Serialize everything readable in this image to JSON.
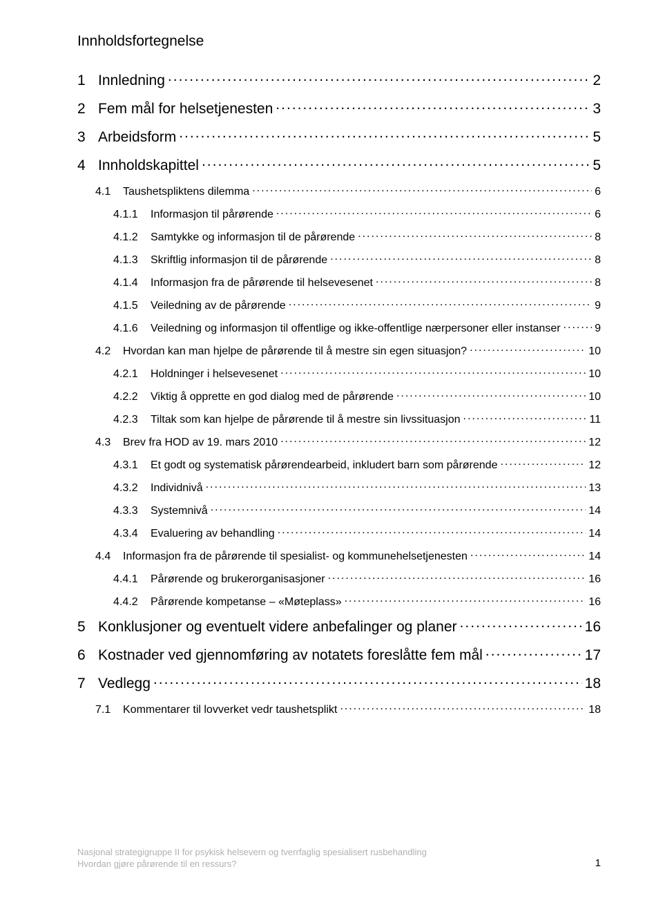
{
  "heading": "Innholdsfortegnelse",
  "toc": [
    {
      "level": 1,
      "num": "1",
      "title": "Innledning",
      "page": "2"
    },
    {
      "level": 1,
      "num": "2",
      "title": "Fem mål for helsetjenesten",
      "page": "3"
    },
    {
      "level": 1,
      "num": "3",
      "title": "Arbeidsform",
      "page": "5"
    },
    {
      "level": 1,
      "num": "4",
      "title": "Innholdskapittel",
      "page": "5"
    },
    {
      "level": 2,
      "num": "4.1",
      "title": "Taushetspliktens dilemma",
      "page": "6"
    },
    {
      "level": 3,
      "num": "4.1.1",
      "title": "Informasjon til pårørende",
      "page": "6"
    },
    {
      "level": 3,
      "num": "4.1.2",
      "title": "Samtykke og informasjon til de pårørende",
      "page": "8"
    },
    {
      "level": 3,
      "num": "4.1.3",
      "title": "Skriftlig informasjon til de pårørende",
      "page": "8"
    },
    {
      "level": 3,
      "num": "4.1.4",
      "title": "Informasjon fra de pårørende til helsevesenet",
      "page": "8"
    },
    {
      "level": 3,
      "num": "4.1.5",
      "title": "Veiledning av de pårørende",
      "page": "9"
    },
    {
      "level": 3,
      "num": "4.1.6",
      "title": "Veiledning og informasjon til offentlige og ikke-offentlige nærpersoner eller instanser",
      "page": "9"
    },
    {
      "level": 2,
      "num": "4.2",
      "title": "Hvordan kan man hjelpe de pårørende til å mestre sin egen situasjon?",
      "page": "10"
    },
    {
      "level": 3,
      "num": "4.2.1",
      "title": "Holdninger i helsevesenet",
      "page": "10"
    },
    {
      "level": 3,
      "num": "4.2.2",
      "title": "Viktig å opprette en god dialog med de pårørende",
      "page": "10"
    },
    {
      "level": 3,
      "num": "4.2.3",
      "title": "Tiltak som kan hjelpe de pårørende til å mestre sin livssituasjon",
      "page": "11"
    },
    {
      "level": 2,
      "num": "4.3",
      "title": "Brev fra HOD av 19. mars 2010",
      "page": "12"
    },
    {
      "level": 3,
      "num": "4.3.1",
      "title": "Et godt og systematisk pårørendearbeid, inkludert barn som pårørende",
      "page": "12"
    },
    {
      "level": 3,
      "num": "4.3.2",
      "title": "Individnivå",
      "page": "13"
    },
    {
      "level": 3,
      "num": "4.3.3",
      "title": "Systemnivå",
      "page": "14"
    },
    {
      "level": 3,
      "num": "4.3.4",
      "title": "Evaluering av behandling",
      "page": "14"
    },
    {
      "level": 2,
      "num": "4.4",
      "title": "Informasjon fra de pårørende til spesialist- og kommunehelsetjenesten",
      "page": "14"
    },
    {
      "level": 3,
      "num": "4.4.1",
      "title": "Pårørende og brukerorganisasjoner",
      "page": "16"
    },
    {
      "level": 3,
      "num": "4.4.2",
      "title": "Pårørende kompetanse – «Møteplass»",
      "page": "16"
    },
    {
      "level": 1,
      "num": "5",
      "title": "Konklusjoner og eventuelt videre anbefalinger og planer",
      "page": "16"
    },
    {
      "level": 1,
      "num": "6",
      "title": "Kostnader ved gjennomføring av notatets foreslåtte fem mål",
      "page": "17"
    },
    {
      "level": 1,
      "num": "7",
      "title": "Vedlegg",
      "page": "18"
    },
    {
      "level": 2,
      "num": "7.1",
      "title": "Kommentarer til lovverket vedr taushetsplikt",
      "page": "18"
    }
  ],
  "footer": {
    "line1": "Nasjonal strategigruppe II for psykisk helsevern og tverrfaglig spesialisert rusbehandling",
    "line2": "Hvordan gjøre pårørende til en ressurs?",
    "page_number": "1"
  },
  "colors": {
    "text": "#000000",
    "footer": "#b0b0b0",
    "background": "#ffffff"
  },
  "typography": {
    "heading_fontsize": 21,
    "lvl1_fontsize": 21,
    "lvl2_fontsize": 16,
    "lvl3_fontsize": 16,
    "footer_fontsize": 13
  }
}
